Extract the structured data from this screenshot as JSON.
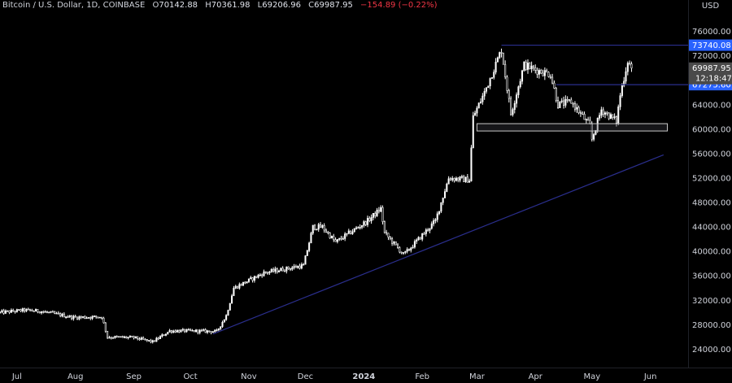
{
  "header": {
    "symbol": "Bitcoin / U.S. Dollar, 1D, COINBASE",
    "o_label": "O",
    "o_value": "70142.88",
    "h_label": "H",
    "h_value": "70361.98",
    "l_label": "L",
    "l_value": "69206.96",
    "c_label": "C",
    "c_value": "69987.95",
    "change": "−154.89 (−0.22%)"
  },
  "currency": "USD",
  "colors": {
    "background": "#000000",
    "candle_up": "#ffffff",
    "candle_down": "#000000",
    "candle_wick": "#ffffff",
    "trendline": "#2a2e8c",
    "level_line": "#2a2e8c",
    "level_label_bg": "#2962ff",
    "current_label_bg": "#4a4a4a",
    "axis_text": "#d1d4dc"
  },
  "chart_data": {
    "type": "candlestick",
    "y_scale": "linear",
    "ylim": [
      21000,
      79000
    ],
    "xlim": [
      "2023-06-22",
      "2024-06-21"
    ],
    "yticks": [
      24000,
      28000,
      32000,
      36000,
      40000,
      44000,
      48000,
      52000,
      56000,
      60000,
      64000,
      68000,
      72000,
      76000
    ],
    "ytick_labels": [
      "24000.00",
      "28000.00",
      "32000.00",
      "36000.00",
      "40000.00",
      "44000.00",
      "48000.00",
      "52000.00",
      "56000.00",
      "60000.00",
      "64000.00",
      "68000.00",
      "72000.00",
      "76000.00"
    ],
    "xticks": [
      {
        "date": "2023-07-01",
        "label": "Jul"
      },
      {
        "date": "2023-08-01",
        "label": "Aug"
      },
      {
        "date": "2023-09-01",
        "label": "Sep"
      },
      {
        "date": "2023-10-01",
        "label": "Oct"
      },
      {
        "date": "2023-11-01",
        "label": "Nov"
      },
      {
        "date": "2023-12-01",
        "label": "Dec"
      },
      {
        "date": "2024-01-01",
        "label": "2024"
      },
      {
        "date": "2024-02-01",
        "label": "Feb"
      },
      {
        "date": "2024-03-01",
        "label": "Mar"
      },
      {
        "date": "2024-04-01",
        "label": "Apr"
      },
      {
        "date": "2024-05-01",
        "label": "May"
      },
      {
        "date": "2024-06-01",
        "label": "Jun"
      }
    ],
    "price_path": [
      {
        "date": "2023-06-22",
        "close": 30000
      },
      {
        "date": "2023-07-05",
        "close": 30400
      },
      {
        "date": "2023-07-14",
        "close": 30200
      },
      {
        "date": "2023-07-31",
        "close": 29200
      },
      {
        "date": "2023-08-15",
        "close": 29300
      },
      {
        "date": "2023-08-18",
        "close": 26000
      },
      {
        "date": "2023-09-01",
        "close": 25900
      },
      {
        "date": "2023-09-11",
        "close": 25200
      },
      {
        "date": "2023-09-20",
        "close": 27000
      },
      {
        "date": "2023-09-30",
        "close": 27000
      },
      {
        "date": "2023-10-15",
        "close": 26900
      },
      {
        "date": "2023-10-20",
        "close": 29500
      },
      {
        "date": "2023-10-24",
        "close": 34000
      },
      {
        "date": "2023-11-09",
        "close": 36500
      },
      {
        "date": "2023-11-30",
        "close": 37700
      },
      {
        "date": "2023-12-05",
        "close": 44000
      },
      {
        "date": "2023-12-10",
        "close": 44000
      },
      {
        "date": "2023-12-17",
        "close": 41500
      },
      {
        "date": "2024-01-03",
        "close": 45000
      },
      {
        "date": "2024-01-10",
        "close": 47000
      },
      {
        "date": "2024-01-12",
        "close": 43000
      },
      {
        "date": "2024-01-22",
        "close": 39500
      },
      {
        "date": "2024-01-24",
        "close": 40000
      },
      {
        "date": "2024-02-08",
        "close": 45000
      },
      {
        "date": "2024-02-15",
        "close": 52000
      },
      {
        "date": "2024-02-26",
        "close": 51700
      },
      {
        "date": "2024-02-28",
        "close": 62000
      },
      {
        "date": "2024-03-05",
        "close": 66000
      },
      {
        "date": "2024-03-14",
        "close": 73000
      },
      {
        "date": "2024-03-19",
        "close": 62500
      },
      {
        "date": "2024-03-26",
        "close": 70500
      },
      {
        "date": "2024-04-01",
        "close": 69700
      },
      {
        "date": "2024-04-09",
        "close": 69000
      },
      {
        "date": "2024-04-13",
        "close": 64000
      },
      {
        "date": "2024-04-20",
        "close": 64500
      },
      {
        "date": "2024-04-30",
        "close": 60500
      },
      {
        "date": "2024-05-01",
        "close": 58300
      },
      {
        "date": "2024-05-06",
        "close": 63200
      },
      {
        "date": "2024-05-14",
        "close": 61300
      },
      {
        "date": "2024-05-16",
        "close": 65600
      },
      {
        "date": "2024-05-20",
        "close": 71200
      },
      {
        "date": "2024-05-22",
        "close": 69988
      }
    ],
    "horizontal_levels": [
      {
        "label": "73740.08",
        "value": 73740.08,
        "from": "2024-03-14",
        "to": "2024-06-21"
      },
      {
        "label": "67275.60",
        "value": 67275.6,
        "from": "2024-04-12",
        "to": "2024-06-21"
      }
    ],
    "support_zone": {
      "y_low": 59700,
      "y_high": 60900,
      "from": "2024-03-01",
      "to": "2024-06-10"
    },
    "trendline": {
      "from": {
        "date": "2023-10-13",
        "value": 26500
      },
      "to": {
        "date": "2024-06-08",
        "value": 55800
      }
    },
    "current_price": {
      "label": "69987.95",
      "value": 69987.95,
      "countdown": "12:18:47"
    }
  }
}
